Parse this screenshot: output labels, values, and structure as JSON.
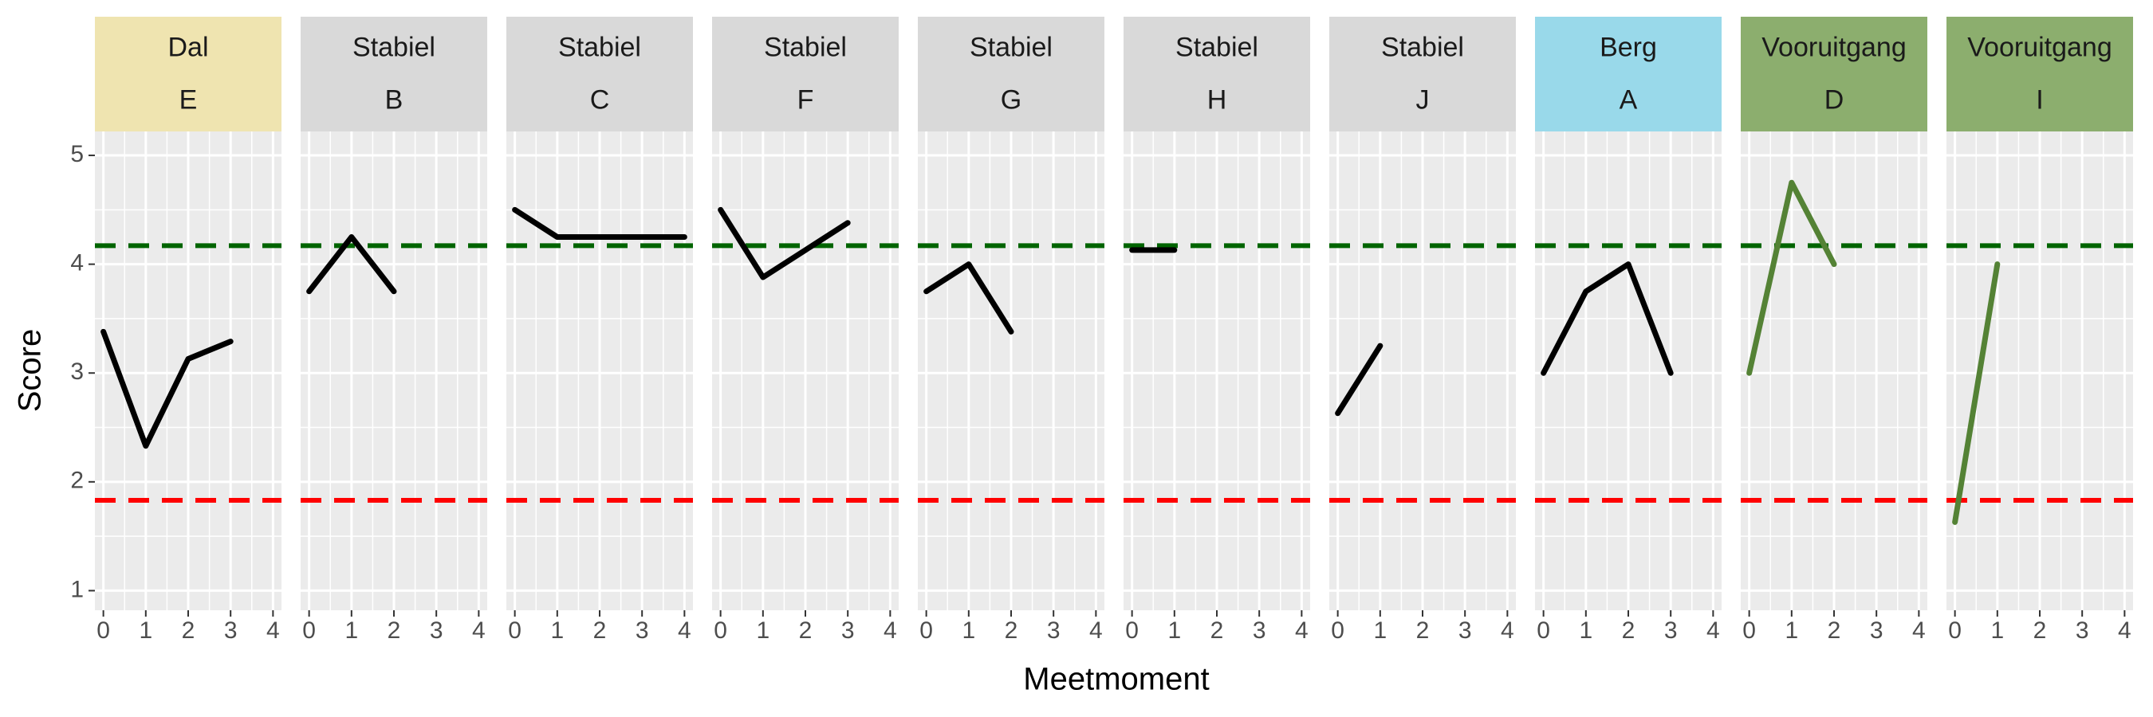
{
  "chart_data": {
    "type": "line",
    "x_label": "Meetmoment",
    "y_label": "Score",
    "xlim": [
      -0.2,
      4.2
    ],
    "xticks": [
      0,
      1,
      2,
      3,
      4
    ],
    "ylim": [
      0.82,
      5.22
    ],
    "yticks": [
      1,
      2,
      3,
      4,
      5
    ],
    "grid": true,
    "reference_lines": [
      {
        "value": 4.17,
        "color": "#006400"
      },
      {
        "value": 1.83,
        "color": "#ff0000"
      }
    ],
    "panels": [
      {
        "group": "Dal",
        "label": "E",
        "strip_color": "#efe4b0",
        "color": "#000000",
        "x": [
          0,
          1,
          2,
          3
        ],
        "values": [
          3.38,
          2.33,
          3.13,
          3.29
        ]
      },
      {
        "group": "Stabiel",
        "label": "B",
        "strip_color": "#d9d9d9",
        "color": "#000000",
        "x": [
          0,
          1,
          2
        ],
        "values": [
          3.75,
          4.25,
          3.75
        ]
      },
      {
        "group": "Stabiel",
        "label": "C",
        "strip_color": "#d9d9d9",
        "color": "#000000",
        "x": [
          0,
          1,
          2,
          3,
          4
        ],
        "values": [
          4.5,
          4.25,
          4.25,
          4.25,
          4.25
        ]
      },
      {
        "group": "Stabiel",
        "label": "F",
        "strip_color": "#d9d9d9",
        "color": "#000000",
        "x": [
          0,
          1,
          2,
          3
        ],
        "values": [
          4.5,
          3.88,
          4.13,
          4.38
        ]
      },
      {
        "group": "Stabiel",
        "label": "G",
        "strip_color": "#d9d9d9",
        "color": "#000000",
        "x": [
          0,
          1,
          2
        ],
        "values": [
          3.75,
          4.0,
          3.38
        ]
      },
      {
        "group": "Stabiel",
        "label": "H",
        "strip_color": "#d9d9d9",
        "color": "#000000",
        "x": [
          0,
          1
        ],
        "values": [
          4.13,
          4.13
        ]
      },
      {
        "group": "Stabiel",
        "label": "J",
        "strip_color": "#d9d9d9",
        "color": "#000000",
        "x": [
          0,
          1
        ],
        "values": [
          2.63,
          3.25
        ]
      },
      {
        "group": "Berg",
        "label": "A",
        "strip_color": "#99d9ea",
        "color": "#000000",
        "x": [
          0,
          1,
          2,
          3
        ],
        "values": [
          3.0,
          3.75,
          4.0,
          3.0
        ]
      },
      {
        "group": "Vooruitgang",
        "label": "D",
        "strip_color": "#8cae6e",
        "color": "#548235",
        "x": [
          0,
          1,
          2
        ],
        "values": [
          3.0,
          4.75,
          4.0
        ]
      },
      {
        "group": "Vooruitgang",
        "label": "I",
        "strip_color": "#8cae6e",
        "color": "#548235",
        "x": [
          0,
          1
        ],
        "values": [
          1.63,
          4.0
        ]
      }
    ]
  }
}
